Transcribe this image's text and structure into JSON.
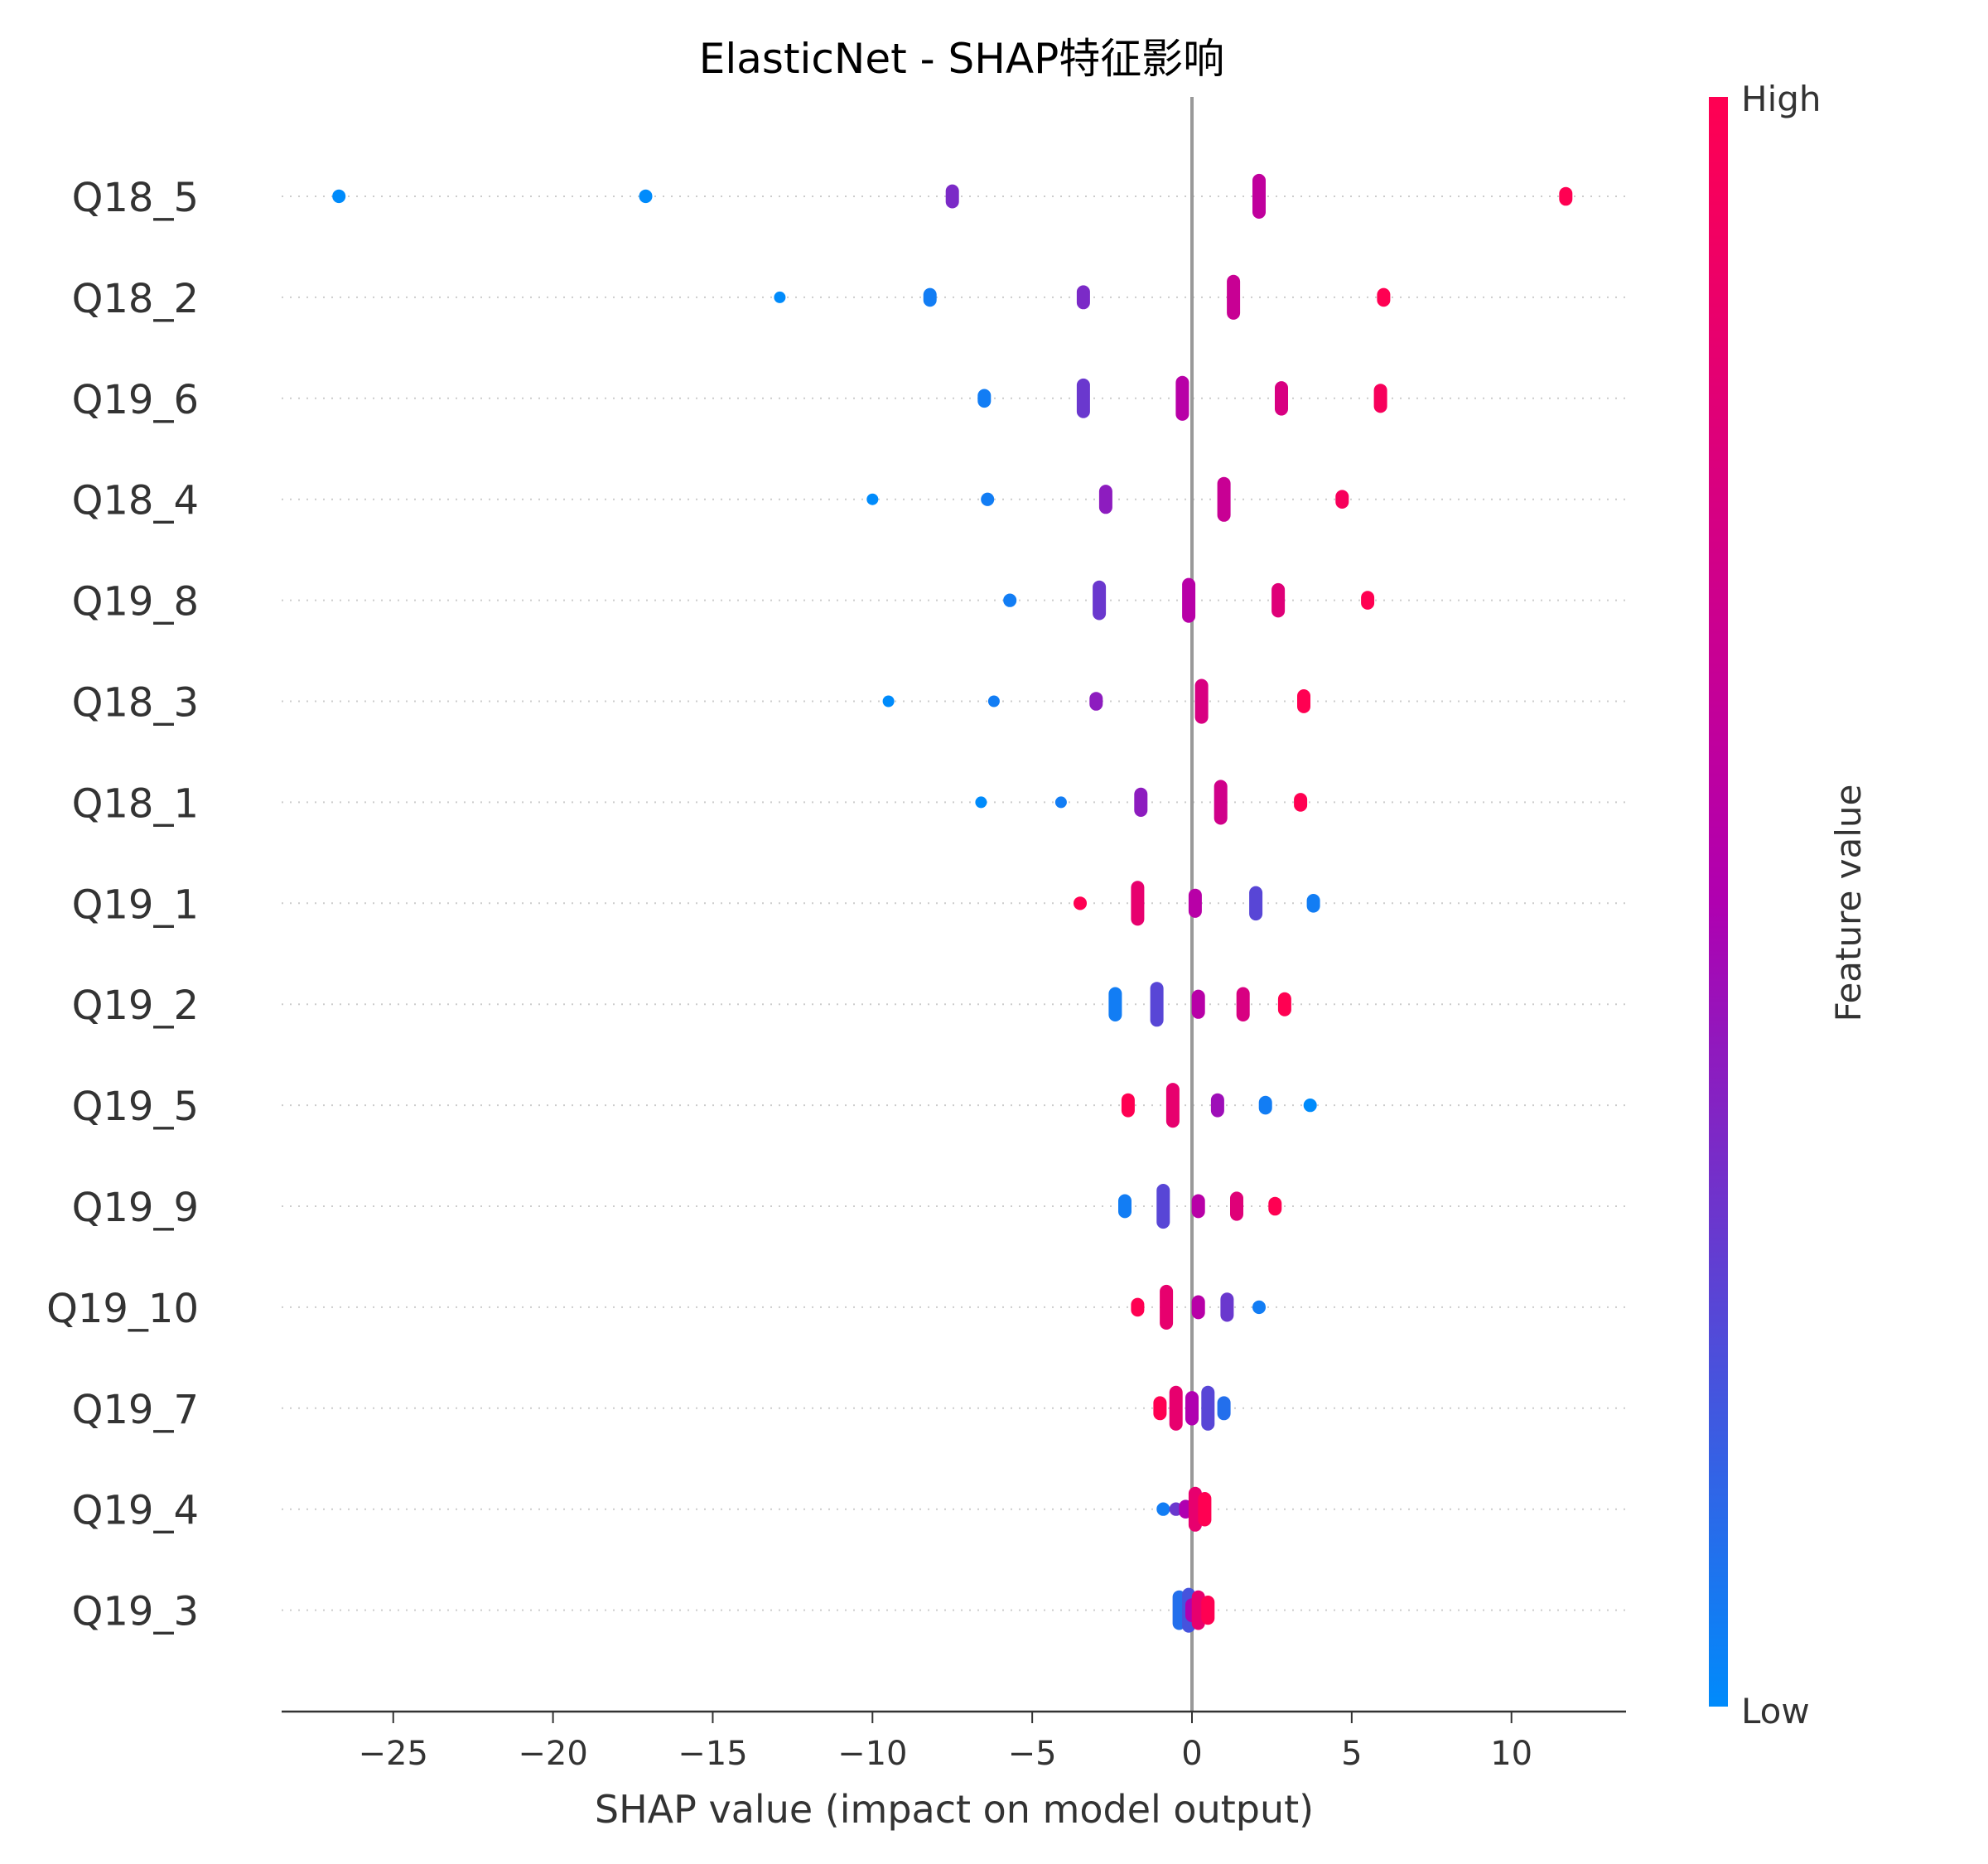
{
  "chart_data": {
    "type": "scatter",
    "title": "ElasticNet - SHAP特征影响",
    "xlabel": "SHAP value (impact on model output)",
    "ylabel": "",
    "xlim": [
      -28.5,
      13.7
    ],
    "x_ticks": [
      -25,
      -20,
      -15,
      -10,
      -5,
      0,
      5,
      10
    ],
    "x_tick_labels": [
      "−25",
      "−20",
      "−15",
      "−10",
      "−5",
      "0",
      "5",
      "10"
    ],
    "colorbar": {
      "label": "Feature value",
      "high_label": "High",
      "low_label": "Low",
      "high_color": "#ff0052",
      "mid_color": "#b000b0",
      "low_color": "#008bfb"
    },
    "features": [
      {
        "name": "Q18_5",
        "points": [
          {
            "x": -26.7,
            "v": 0.0,
            "n": 2
          },
          {
            "x": -17.1,
            "v": 0.0,
            "n": 2
          },
          {
            "x": -7.5,
            "v": 0.35,
            "n": 4
          },
          {
            "x": 2.1,
            "v": 0.6,
            "n": 8
          },
          {
            "x": 11.7,
            "v": 1.0,
            "n": 3
          }
        ]
      },
      {
        "name": "Q18_2",
        "points": [
          {
            "x": -12.9,
            "v": 0.0,
            "n": 1
          },
          {
            "x": -8.2,
            "v": 0.05,
            "n": 3
          },
          {
            "x": -3.4,
            "v": 0.35,
            "n": 4
          },
          {
            "x": 1.3,
            "v": 0.65,
            "n": 8
          },
          {
            "x": 6.0,
            "v": 1.0,
            "n": 3
          }
        ]
      },
      {
        "name": "Q19_6",
        "points": [
          {
            "x": -6.5,
            "v": 0.05,
            "n": 3
          },
          {
            "x": -3.4,
            "v": 0.3,
            "n": 7
          },
          {
            "x": -0.3,
            "v": 0.55,
            "n": 8
          },
          {
            "x": 2.8,
            "v": 0.75,
            "n": 6
          },
          {
            "x": 5.9,
            "v": 0.95,
            "n": 5
          }
        ]
      },
      {
        "name": "Q18_4",
        "points": [
          {
            "x": -10.0,
            "v": 0.0,
            "n": 1
          },
          {
            "x": -6.4,
            "v": 0.05,
            "n": 2
          },
          {
            "x": -2.7,
            "v": 0.4,
            "n": 5
          },
          {
            "x": 1.0,
            "v": 0.65,
            "n": 8
          },
          {
            "x": 4.7,
            "v": 0.95,
            "n": 3
          }
        ]
      },
      {
        "name": "Q19_8",
        "points": [
          {
            "x": -5.7,
            "v": 0.05,
            "n": 2
          },
          {
            "x": -2.9,
            "v": 0.3,
            "n": 7
          },
          {
            "x": -0.1,
            "v": 0.55,
            "n": 8
          },
          {
            "x": 2.7,
            "v": 0.8,
            "n": 6
          },
          {
            "x": 5.5,
            "v": 1.0,
            "n": 3
          }
        ]
      },
      {
        "name": "Q18_3",
        "points": [
          {
            "x": -9.5,
            "v": 0.0,
            "n": 1
          },
          {
            "x": -6.2,
            "v": 0.05,
            "n": 1
          },
          {
            "x": -3.0,
            "v": 0.4,
            "n": 3
          },
          {
            "x": 0.3,
            "v": 0.75,
            "n": 8
          },
          {
            "x": 3.5,
            "v": 1.0,
            "n": 4
          }
        ]
      },
      {
        "name": "Q18_1",
        "points": [
          {
            "x": -6.6,
            "v": 0.0,
            "n": 1
          },
          {
            "x": -4.1,
            "v": 0.05,
            "n": 1
          },
          {
            "x": -1.6,
            "v": 0.4,
            "n": 5
          },
          {
            "x": 0.9,
            "v": 0.7,
            "n": 8
          },
          {
            "x": 3.4,
            "v": 1.0,
            "n": 3
          }
        ]
      },
      {
        "name": "Q19_1",
        "points": [
          {
            "x": -3.5,
            "v": 1.0,
            "n": 2
          },
          {
            "x": -1.7,
            "v": 0.85,
            "n": 8
          },
          {
            "x": 0.1,
            "v": 0.55,
            "n": 5
          },
          {
            "x": 2.0,
            "v": 0.25,
            "n": 6
          },
          {
            "x": 3.8,
            "v": 0.05,
            "n": 3
          }
        ]
      },
      {
        "name": "Q19_2",
        "points": [
          {
            "x": -2.4,
            "v": 0.05,
            "n": 6
          },
          {
            "x": -1.1,
            "v": 0.25,
            "n": 8
          },
          {
            "x": 0.2,
            "v": 0.55,
            "n": 5
          },
          {
            "x": 1.6,
            "v": 0.75,
            "n": 6
          },
          {
            "x": 2.9,
            "v": 1.0,
            "n": 4
          }
        ]
      },
      {
        "name": "Q19_5",
        "points": [
          {
            "x": -2.0,
            "v": 1.0,
            "n": 4
          },
          {
            "x": -0.6,
            "v": 0.85,
            "n": 8
          },
          {
            "x": 0.8,
            "v": 0.45,
            "n": 4
          },
          {
            "x": 2.3,
            "v": 0.05,
            "n": 3
          },
          {
            "x": 3.7,
            "v": 0.0,
            "n": 2
          }
        ]
      },
      {
        "name": "Q19_9",
        "points": [
          {
            "x": -2.1,
            "v": 0.05,
            "n": 4
          },
          {
            "x": -0.9,
            "v": 0.25,
            "n": 8
          },
          {
            "x": 0.2,
            "v": 0.55,
            "n": 4
          },
          {
            "x": 1.4,
            "v": 0.8,
            "n": 5
          },
          {
            "x": 2.6,
            "v": 1.0,
            "n": 3
          }
        ]
      },
      {
        "name": "Q19_10",
        "points": [
          {
            "x": -1.7,
            "v": 1.0,
            "n": 3
          },
          {
            "x": -0.8,
            "v": 0.85,
            "n": 8
          },
          {
            "x": 0.2,
            "v": 0.55,
            "n": 4
          },
          {
            "x": 1.1,
            "v": 0.3,
            "n": 5
          },
          {
            "x": 2.1,
            "v": 0.05,
            "n": 2
          }
        ]
      },
      {
        "name": "Q19_7",
        "points": [
          {
            "x": -1.0,
            "v": 1.0,
            "n": 4
          },
          {
            "x": -0.5,
            "v": 0.85,
            "n": 8
          },
          {
            "x": 0.0,
            "v": 0.5,
            "n": 6
          },
          {
            "x": 0.5,
            "v": 0.25,
            "n": 8
          },
          {
            "x": 1.0,
            "v": 0.1,
            "n": 4
          }
        ]
      },
      {
        "name": "Q19_4",
        "points": [
          {
            "x": -0.9,
            "v": 0.05,
            "n": 2
          },
          {
            "x": -0.5,
            "v": 0.3,
            "n": 2
          },
          {
            "x": -0.2,
            "v": 0.5,
            "n": 3
          },
          {
            "x": 0.1,
            "v": 0.85,
            "n": 8
          },
          {
            "x": 0.4,
            "v": 1.0,
            "n": 6
          }
        ]
      },
      {
        "name": "Q19_3",
        "points": [
          {
            "x": -0.4,
            "v": 0.1,
            "n": 7
          },
          {
            "x": -0.1,
            "v": 0.2,
            "n": 8
          },
          {
            "x": 0.0,
            "v": 0.5,
            "n": 4
          },
          {
            "x": 0.2,
            "v": 0.85,
            "n": 7
          },
          {
            "x": 0.5,
            "v": 1.0,
            "n": 5
          }
        ]
      }
    ]
  }
}
